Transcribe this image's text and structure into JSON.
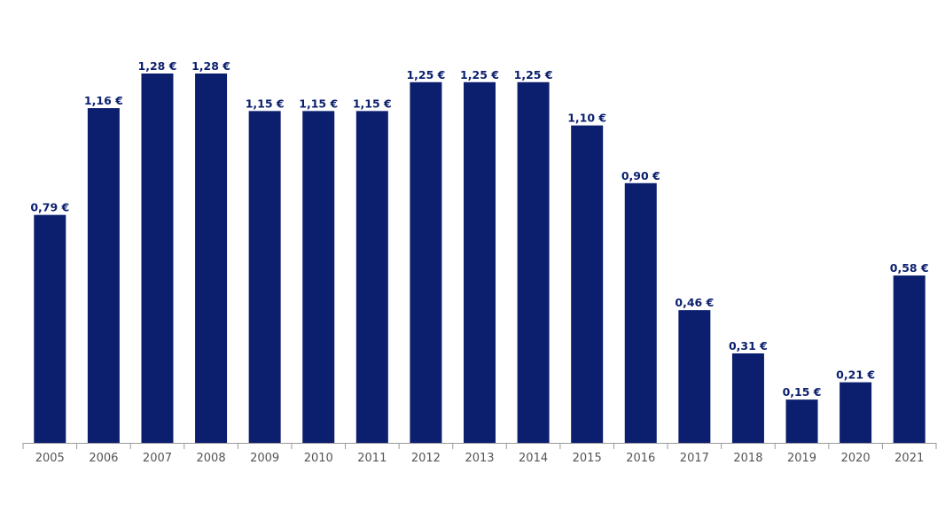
{
  "chart_data": {
    "type": "bar",
    "title": "",
    "xlabel": "",
    "ylabel": "",
    "ylim": [
      0,
      1.4
    ],
    "grid": false,
    "legend": "none",
    "categories": [
      "2005",
      "2006",
      "2007",
      "2008",
      "2009",
      "2010",
      "2011",
      "2012",
      "2013",
      "2014",
      "2015",
      "2016",
      "2017",
      "2018",
      "2019",
      "2020",
      "2021"
    ],
    "values": [
      0.79,
      1.16,
      1.28,
      1.28,
      1.15,
      1.15,
      1.15,
      1.25,
      1.25,
      1.25,
      1.1,
      0.9,
      0.46,
      0.31,
      0.15,
      0.21,
      0.58
    ],
    "data_labels": [
      "0,79 €",
      "1,16 €",
      "1,28 €",
      "1,28 €",
      "1,15 €",
      "1,15 €",
      "1,15 €",
      "1,25 €",
      "1,25 €",
      "1,25 €",
      "1,10 €",
      "0,90 €",
      "0,46 €",
      "0,31 €",
      "0,15 €",
      "0,21 €",
      "0,58 €"
    ]
  },
  "colors": {
    "bar": "#0b1f6e",
    "value_label": "#0b1f6e",
    "axis": "#9a9a9a",
    "tick_label": "#555555",
    "background": "#ffffff"
  }
}
